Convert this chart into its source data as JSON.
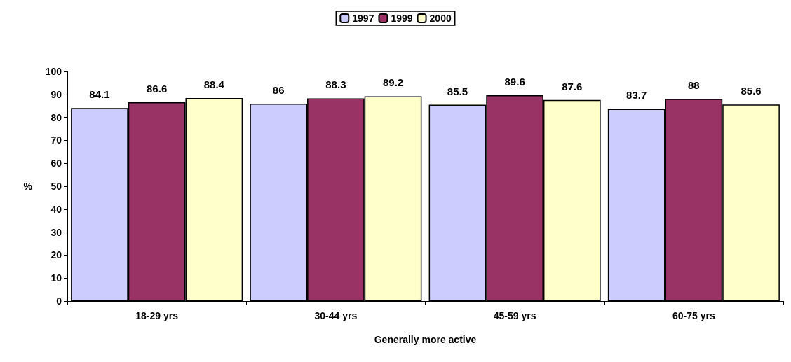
{
  "chart_data": {
    "type": "bar",
    "xlabel": "Generally more active",
    "ylabel": "%",
    "categories": [
      "18-29 yrs",
      "30-44 yrs",
      "45-59 yrs",
      "60-75 yrs"
    ],
    "series": [
      {
        "name": "1997",
        "color": "#ccccff",
        "values": [
          84.1,
          86,
          85.5,
          83.7
        ]
      },
      {
        "name": "1999",
        "color": "#993366",
        "values": [
          86.6,
          88.3,
          89.6,
          88
        ]
      },
      {
        "name": "2000",
        "color": "#ffffcc",
        "values": [
          88.4,
          89.2,
          87.6,
          85.6
        ]
      }
    ],
    "ylim": [
      0,
      100
    ],
    "yticks": [
      0,
      10,
      20,
      30,
      40,
      50,
      60,
      70,
      80,
      90,
      100
    ],
    "grid": false,
    "legend": "top",
    "data_labels": true
  }
}
